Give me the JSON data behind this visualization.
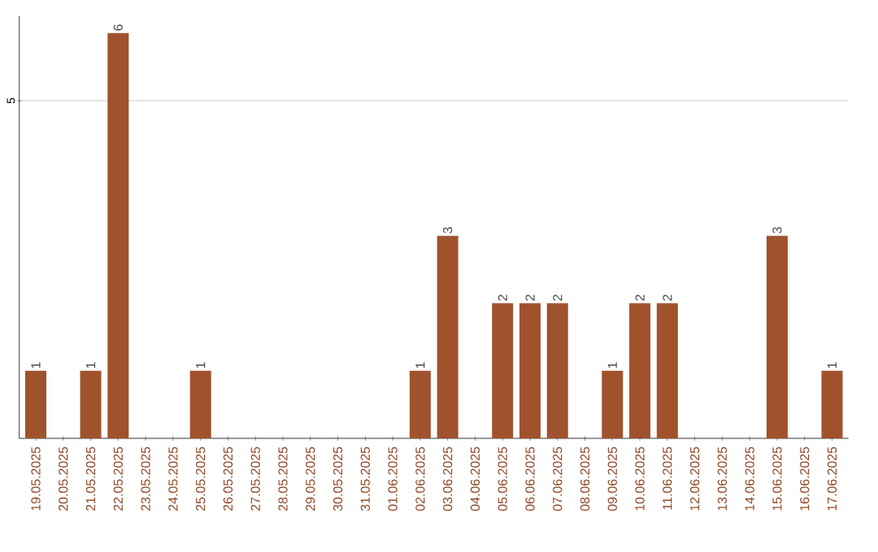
{
  "chart_data": {
    "type": "bar",
    "categories": [
      "19.05.2025",
      "20.05.2025",
      "21.05.2025",
      "22.05.2025",
      "23.05.2025",
      "24.05.2025",
      "25.05.2025",
      "26.05.2025",
      "27.05.2025",
      "28.05.2025",
      "29.05.2025",
      "30.05.2025",
      "31.05.2025",
      "01.06.2025",
      "02.06.2025",
      "03.06.2025",
      "04.06.2025",
      "05.06.2025",
      "06.06.2025",
      "07.06.2025",
      "08.06.2025",
      "09.06.2025",
      "10.06.2025",
      "11.06.2025",
      "12.06.2025",
      "13.06.2025",
      "14.06.2025",
      "15.06.2025",
      "16.06.2025",
      "17.06.2025"
    ],
    "values": [
      1,
      0,
      1,
      6,
      0,
      0,
      1,
      0,
      0,
      0,
      0,
      0,
      0,
      0,
      1,
      3,
      0,
      2,
      2,
      2,
      0,
      1,
      2,
      2,
      0,
      0,
      0,
      3,
      0,
      1
    ],
    "value_labels": [
      "1",
      null,
      "1",
      "6",
      null,
      null,
      "1",
      null,
      null,
      null,
      null,
      null,
      null,
      null,
      "1",
      "3",
      null,
      "2",
      "2",
      "2",
      null,
      "1",
      "2",
      "2",
      null,
      null,
      null,
      "3",
      null,
      "1"
    ],
    "color": "#a0522d",
    "ylim": [
      0,
      6.25
    ],
    "yticks": [
      5
    ],
    "grid": "y"
  }
}
